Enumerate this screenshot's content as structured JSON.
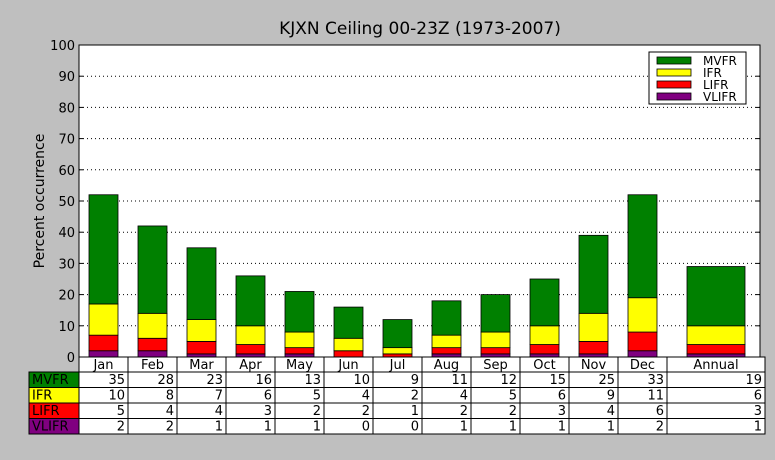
{
  "chart_data": {
    "type": "bar",
    "stacked": true,
    "title": "KJXN Ceiling 00-23Z (1973-2007)",
    "ylabel": "Percent occurrence",
    "ylim": [
      0,
      100
    ],
    "yticks": [
      0,
      10,
      20,
      30,
      40,
      50,
      60,
      70,
      80,
      90,
      100
    ],
    "grid": "horizontal-dotted",
    "legend_position": "top-right",
    "categories": [
      "Jan",
      "Feb",
      "Mar",
      "Apr",
      "May",
      "Jun",
      "Jul",
      "Aug",
      "Sep",
      "Oct",
      "Nov",
      "Dec",
      "Annual"
    ],
    "series": [
      {
        "name": "VLIFR",
        "color": "#800080",
        "values": [
          2,
          2,
          1,
          1,
          1,
          0,
          0,
          1,
          1,
          1,
          1,
          2,
          1
        ]
      },
      {
        "name": "LIFR",
        "color": "#ff0000",
        "values": [
          5,
          4,
          4,
          3,
          2,
          2,
          1,
          2,
          2,
          3,
          4,
          6,
          3
        ]
      },
      {
        "name": "IFR",
        "color": "#ffff00",
        "values": [
          10,
          8,
          7,
          6,
          5,
          4,
          2,
          4,
          5,
          6,
          9,
          11,
          6
        ]
      },
      {
        "name": "MVFR",
        "color": "#008000",
        "values": [
          35,
          28,
          23,
          16,
          13,
          10,
          9,
          11,
          12,
          15,
          25,
          33,
          19
        ]
      }
    ],
    "legend_order": [
      "MVFR",
      "IFR",
      "LIFR",
      "VLIFR"
    ],
    "table_row_order": [
      "MVFR",
      "IFR",
      "LIFR",
      "VLIFR"
    ]
  }
}
